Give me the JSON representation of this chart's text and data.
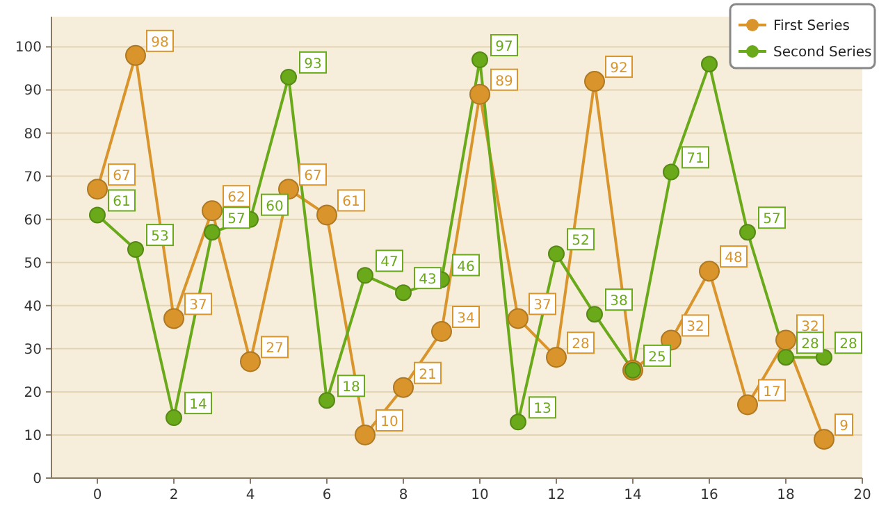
{
  "chart_data": {
    "type": "line",
    "x": [
      0,
      1,
      2,
      3,
      4,
      5,
      6,
      7,
      8,
      9,
      10,
      11,
      12,
      13,
      14,
      15,
      16,
      17,
      18,
      19
    ],
    "series": [
      {
        "name": "First Series",
        "color": "#d9952b",
        "values": [
          67,
          98,
          37,
          62,
          27,
          67,
          61,
          10,
          21,
          34,
          89,
          37,
          28,
          92,
          25,
          32,
          48,
          17,
          32,
          9
        ],
        "value_labels": [
          "67",
          "98",
          "37",
          "62",
          "27",
          "67",
          "61",
          "10",
          "21",
          "34",
          "89",
          "37",
          "28",
          "92",
          null,
          "32",
          "48",
          "17",
          "32",
          "9"
        ]
      },
      {
        "name": "Second Series",
        "color": "#6aaa1a",
        "values": [
          61,
          53,
          14,
          57,
          60,
          93,
          18,
          47,
          43,
          46,
          97,
          13,
          52,
          38,
          25,
          71,
          96,
          57,
          28,
          28
        ],
        "value_labels": [
          "61",
          "53",
          "14",
          "57",
          "60",
          "93",
          "18",
          "47",
          "43",
          "46",
          "97",
          "13",
          "52",
          "38",
          "25",
          "71",
          null,
          "57",
          "28",
          "28"
        ]
      }
    ],
    "xlim": [
      -1.2,
      20
    ],
    "xticks": [
      0,
      2,
      4,
      6,
      8,
      10,
      12,
      14,
      16,
      18,
      20
    ],
    "ylim": [
      0,
      107
    ],
    "yticks": [
      0,
      10,
      20,
      30,
      40,
      50,
      60,
      70,
      80,
      90,
      100
    ],
    "grid": "y",
    "legend": "top right",
    "marker": "circle",
    "line_style": "solid"
  }
}
